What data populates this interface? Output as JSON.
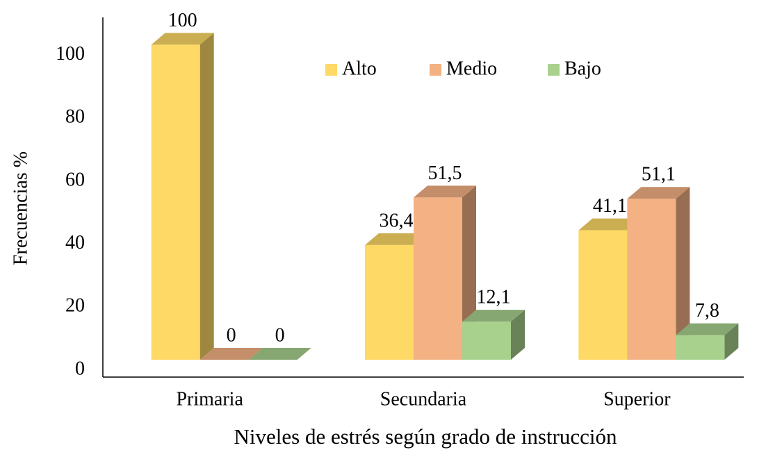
{
  "chart_data": {
    "type": "bar3d",
    "x_label": "Niveles de estrés según grado de instrucción",
    "y_label": "Frecuencias %",
    "categories": [
      "Primaria",
      "Secundaria",
      "Superior"
    ],
    "series": [
      {
        "name": "Alto",
        "color": "#FFD966",
        "values": [
          100,
          36.4,
          41.1
        ],
        "value_labels": [
          "100",
          "36,4",
          "41,1"
        ]
      },
      {
        "name": "Medio",
        "color": "#F4B183",
        "values": [
          0,
          51.5,
          51.1
        ],
        "value_labels": [
          "0",
          "51,5",
          "51,1"
        ]
      },
      {
        "name": "Bajo",
        "color": "#A9D18E",
        "values": [
          0,
          12.1,
          7.8
        ],
        "value_labels": [
          "0",
          "12,1",
          "7,8"
        ]
      }
    ],
    "ylim": [
      0,
      112
    ],
    "yticks": [
      0,
      20,
      40,
      60,
      80,
      100
    ],
    "grid": false,
    "legend": "top"
  }
}
